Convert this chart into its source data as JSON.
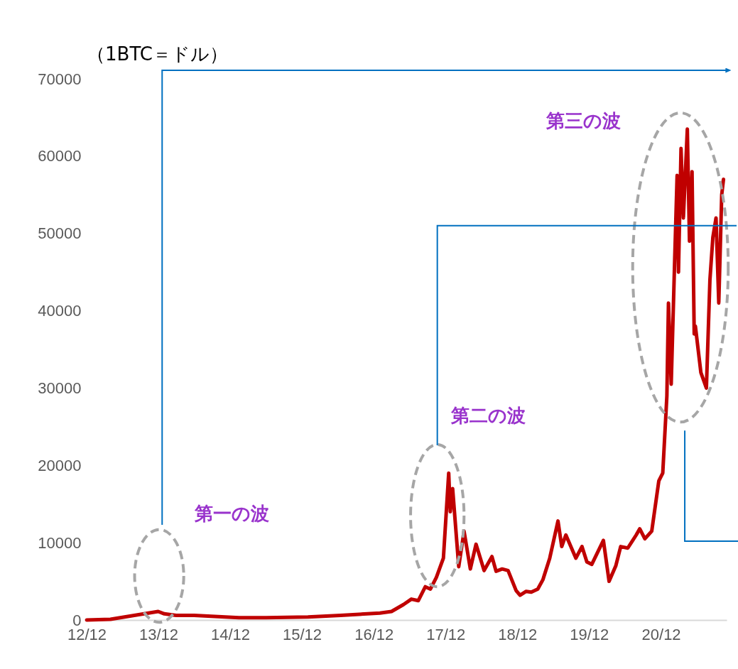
{
  "chart_data": {
    "type": "line",
    "ylabel": "（1BTC＝ドル）",
    "x": [
      "2012-12-01",
      "2013-04-01",
      "2013-11-30",
      "2013-12-31",
      "2014-03-01",
      "2014-06-01",
      "2015-01-15",
      "2015-06-01",
      "2016-01-01",
      "2016-06-15",
      "2017-01-01",
      "2017-03-01",
      "2017-05-01",
      "2017-06-10",
      "2017-07-15",
      "2017-08-20",
      "2017-09-15",
      "2017-10-15",
      "2017-11-20",
      "2017-12-17",
      "2017-12-25",
      "2018-01-06",
      "2018-02-06",
      "2018-03-05",
      "2018-04-06",
      "2018-05-05",
      "2018-06-15",
      "2018-07-25",
      "2018-08-15",
      "2018-09-15",
      "2018-10-15",
      "2018-11-25",
      "2018-12-15",
      "2019-01-15",
      "2019-02-10",
      "2019-03-15",
      "2019-04-10",
      "2019-05-15",
      "2019-06-26",
      "2019-07-15",
      "2019-08-05",
      "2019-09-25",
      "2019-10-26",
      "2019-11-20",
      "2019-12-15",
      "2020-02-12",
      "2020-03-12",
      "2020-04-15",
      "2020-05-10",
      "2020-06-15",
      "2020-07-28",
      "2020-08-15",
      "2020-09-10",
      "2020-10-15",
      "2020-11-20",
      "2020-12-10",
      "2020-12-31",
      "2021-01-08",
      "2021-01-22",
      "2021-02-08",
      "2021-02-21",
      "2021-02-28",
      "2021-03-13",
      "2021-03-25",
      "2021-04-14",
      "2021-04-25",
      "2021-05-08",
      "2021-05-19",
      "2021-05-25",
      "2021-06-22",
      "2021-07-20",
      "2021-08-07",
      "2021-08-22",
      "2021-09-07",
      "2021-09-21",
      "2021-10-06",
      "2021-10-15"
    ],
    "series": [
      {
        "color": "#c00000",
        "values": [
          0,
          100,
          1100,
          800,
          600,
          600,
          300,
          300,
          400,
          600,
          900,
          1100,
          2000,
          2700,
          2500,
          4300,
          4000,
          5500,
          8000,
          19000,
          14000,
          17000,
          6900,
          11500,
          6600,
          9800,
          6400,
          8200,
          6300,
          6600,
          6400,
          3800,
          3200,
          3700,
          3600,
          4000,
          5200,
          8000,
          12800,
          9500,
          11000,
          8000,
          9500,
          7500,
          7200,
          10300,
          5000,
          7000,
          9500,
          9300,
          11000,
          11800,
          10500,
          11500,
          18000,
          19000,
          29000,
          41000,
          30500,
          46000,
          57500,
          45000,
          61000,
          52000,
          63500,
          49000,
          58000,
          37000,
          38000,
          32000,
          30000,
          44000,
          49500,
          52000,
          41000,
          55000,
          57000
        ]
      }
    ],
    "xlim": [
      "2012-12-01",
      "2021-10-31"
    ],
    "xticks": [
      {
        "value": "2012-12-01",
        "label": "12/12"
      },
      {
        "value": "2013-12-01",
        "label": "13/12"
      },
      {
        "value": "2014-12-01",
        "label": "14/12"
      },
      {
        "value": "2015-12-01",
        "label": "15/12"
      },
      {
        "value": "2016-12-01",
        "label": "16/12"
      },
      {
        "value": "2017-12-01",
        "label": "17/12"
      },
      {
        "value": "2018-12-01",
        "label": "18/12"
      },
      {
        "value": "2019-12-01",
        "label": "19/12"
      },
      {
        "value": "2020-12-01",
        "label": "20/12"
      }
    ],
    "ylim": [
      0,
      70000
    ],
    "yticks": [
      0,
      10000,
      20000,
      30000,
      40000,
      50000,
      60000,
      70000
    ],
    "annotations": [
      "第一の波",
      "第二の波",
      "第三の波"
    ],
    "grid": false,
    "legend": false,
    "marker": "none",
    "line_style": "solid"
  }
}
